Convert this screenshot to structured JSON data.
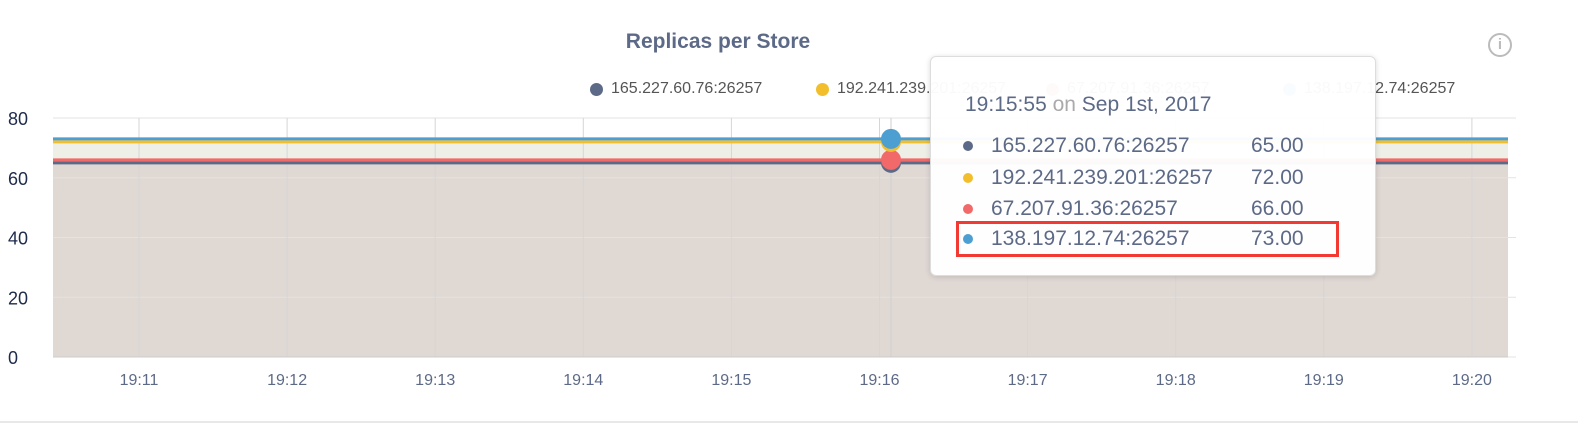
{
  "chart_data": {
    "type": "area",
    "title": "Replicas per Store",
    "x_ticks": [
      "19:11",
      "19:12",
      "19:13",
      "19:14",
      "19:15",
      "19:16",
      "19:17",
      "19:18",
      "19:19",
      "19:20"
    ],
    "y_ticks": [
      "0",
      "20",
      "40",
      "60",
      "80"
    ],
    "ylim": [
      0,
      80
    ],
    "grid": true,
    "legend": "top",
    "series": [
      {
        "name": "165.227.60.76:26257",
        "color": "#5d6a87",
        "value": 65
      },
      {
        "name": "192.241.239.201:26257",
        "color": "#f2be2c",
        "value": 72
      },
      {
        "name": "67.207.91.36:26257",
        "color": "#f16969",
        "value": 66
      },
      {
        "name": "138.197.12.74:26257",
        "color": "#4e9fd1",
        "value": 73
      }
    ]
  },
  "info_icon": "i",
  "tooltip": {
    "time": "19:15:55",
    "on": "on",
    "date": "Sep 1st, 2017",
    "rows": [
      {
        "label": "165.227.60.76:26257",
        "value": "65.00",
        "color": "#5d6a87"
      },
      {
        "label": "192.241.239.201:26257",
        "value": "72.00",
        "color": "#f2be2c"
      },
      {
        "label": "67.207.91.36:26257",
        "value": "66.00",
        "color": "#f16969"
      },
      {
        "label": "138.197.12.74:26257",
        "value": "73.00",
        "color": "#4e9fd1",
        "highlighted": true
      }
    ]
  }
}
